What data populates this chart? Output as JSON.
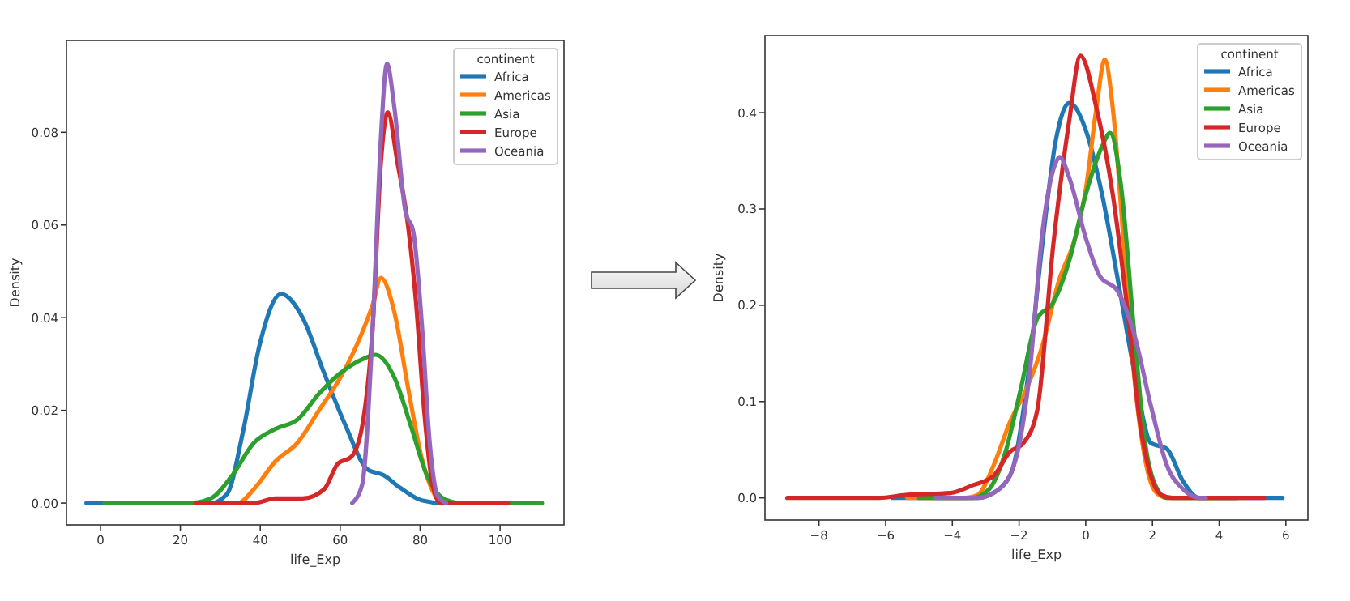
{
  "chart_data": [
    {
      "type": "line",
      "xlabel": "life_Exp",
      "ylabel": "Density",
      "legend": "top right",
      "legend_title": "continent",
      "xlim": [
        -8.5,
        116
      ],
      "ylim": [
        -0.0047,
        0.0998
      ],
      "xticks": [
        0,
        20,
        40,
        60,
        80,
        100
      ],
      "yticks": [
        {
          "value": 0,
          "label": "0.00"
        },
        {
          "value": 0.02,
          "label": "0.02"
        },
        {
          "value": 0.04,
          "label": "0.04"
        },
        {
          "value": 0.06,
          "label": "0.06"
        },
        {
          "value": 0.08,
          "label": "0.08"
        }
      ],
      "series": [
        {
          "name": "Africa",
          "color": "#1f77b4",
          "x": [
            -3.5,
            27.6,
            31.7,
            35.7,
            39.8,
            45.2,
            50.6,
            56,
            61.4,
            66.8,
            70.9,
            75,
            80.4,
            85.8,
            102
          ],
          "values": [
            0,
            0,
            0.002,
            0.0155,
            0.034,
            0.0451,
            0.04,
            0.028,
            0.0166,
            0.0073,
            0.006,
            0.0033,
            0.0006,
            0,
            0
          ]
        },
        {
          "name": "Americas",
          "color": "#ff7f0e",
          "x": [
            14,
            34.4,
            38.4,
            43.8,
            49.3,
            54.7,
            60,
            64.1,
            68.2,
            70.2,
            73.6,
            77,
            80.4,
            83.1,
            85.8,
            98
          ],
          "values": [
            0,
            0,
            0.003,
            0.009,
            0.013,
            0.02,
            0.027,
            0.034,
            0.043,
            0.0486,
            0.041,
            0.0248,
            0.0097,
            0.0027,
            0,
            0
          ]
        },
        {
          "name": "Asia",
          "color": "#2ca02c",
          "x": [
            1,
            22,
            27.6,
            33,
            38.4,
            43.8,
            49.3,
            54.7,
            60,
            65.5,
            68.9,
            73.6,
            77.7,
            81.7,
            85.8,
            89.9,
            110.5
          ],
          "values": [
            0,
            0,
            0.001,
            0.006,
            0.013,
            0.016,
            0.018,
            0.0236,
            0.028,
            0.031,
            0.032,
            0.027,
            0.0166,
            0.006,
            0.001,
            0,
            0
          ]
        },
        {
          "name": "Europe",
          "color": "#d62728",
          "x": [
            23.8,
            38.4,
            43.8,
            50.6,
            56,
            59.4,
            62.8,
            65.5,
            68.2,
            70.2,
            71.9,
            74.3,
            77,
            79,
            81,
            83.1,
            85.1,
            102
          ],
          "values": [
            0,
            0,
            0.001,
            0.001,
            0.003,
            0.0085,
            0.01,
            0.0166,
            0.039,
            0.0736,
            0.0843,
            0.0736,
            0.0597,
            0.043,
            0.02,
            0.004,
            0,
            0
          ]
        },
        {
          "name": "Oceania",
          "color": "#9467bd",
          "x": [
            63,
            65.5,
            68.2,
            70.2,
            71.7,
            73.6,
            76.3,
            78.3,
            80.4,
            82.4,
            84.4,
            86.5
          ],
          "values": [
            0,
            0.004,
            0.039,
            0.079,
            0.0948,
            0.085,
            0.063,
            0.0585,
            0.039,
            0.013,
            0.0015,
            0
          ]
        }
      ]
    },
    {
      "type": "line",
      "xlabel": "life_Exp",
      "ylabel": "Density",
      "legend": "top right",
      "legend_title": "continent",
      "xlim": [
        -9.62,
        6.66
      ],
      "ylim": [
        -0.023,
        0.48
      ],
      "xticks": [
        {
          "value": -8,
          "label": "−8"
        },
        {
          "value": -6,
          "label": "−6"
        },
        {
          "value": -4,
          "label": "−4"
        },
        {
          "value": -2,
          "label": "−2"
        },
        0,
        2,
        4,
        6
      ],
      "yticks": [
        {
          "value": 0,
          "label": "0.0"
        },
        0.1,
        0.2,
        0.3,
        0.4
      ],
      "series": [
        {
          "name": "Africa",
          "color": "#1f77b4",
          "x": [
            -5.8,
            -3.2,
            -2.9,
            -2.27,
            -1.78,
            -1.3,
            -0.9,
            -0.49,
            0,
            0.49,
            0.97,
            1.46,
            1.95,
            2.43,
            2.92,
            3.4,
            5.9
          ],
          "values": [
            0,
            0,
            0.003,
            0.023,
            0.113,
            0.264,
            0.371,
            0.41,
            0.382,
            0.315,
            0.225,
            0.13,
            0.057,
            0.051,
            0.017,
            0,
            0
          ]
        },
        {
          "name": "Americas",
          "color": "#ff7f0e",
          "x": [
            -5.35,
            -3.6,
            -3.24,
            -2.76,
            -2.27,
            -1.78,
            -1.3,
            -0.81,
            -0.32,
            0,
            0.32,
            0.57,
            0.81,
            1.14,
            1.46,
            1.78,
            2.1,
            2.43,
            4.5
          ],
          "values": [
            0,
            0,
            0.003,
            0.034,
            0.079,
            0.113,
            0.158,
            0.225,
            0.27,
            0.32,
            0.405,
            0.455,
            0.405,
            0.264,
            0.124,
            0.04,
            0.006,
            0,
            0
          ]
        },
        {
          "name": "Asia",
          "color": "#2ca02c",
          "x": [
            -5,
            -3.4,
            -2.9,
            -2.43,
            -1.95,
            -1.46,
            -0.97,
            -0.49,
            0,
            0.49,
            0.73,
            1.05,
            1.46,
            1.78,
            2.1,
            2.43,
            4.5
          ],
          "values": [
            0,
            0,
            0.009,
            0.045,
            0.113,
            0.186,
            0.203,
            0.247,
            0.315,
            0.365,
            0.379,
            0.326,
            0.169,
            0.057,
            0.012,
            0,
            0
          ]
        },
        {
          "name": "Europe",
          "color": "#d62728",
          "x": [
            -8.95,
            -6.2,
            -5.4,
            -4.06,
            -3.4,
            -2.76,
            -2.27,
            -1.87,
            -1.46,
            -0.97,
            -0.49,
            -0.16,
            0.32,
            0.81,
            1.3,
            1.62,
            1.95,
            2.27,
            2.6,
            5.35
          ],
          "values": [
            0,
            0,
            0.003,
            0.005,
            0.013,
            0.023,
            0.048,
            0.057,
            0.09,
            0.264,
            0.393,
            0.459,
            0.405,
            0.315,
            0.18,
            0.079,
            0.023,
            0.003,
            0,
            0
          ]
        },
        {
          "name": "Oceania",
          "color": "#9467bd",
          "x": [
            -4.5,
            -3.24,
            -2.6,
            -2.1,
            -1.7,
            -1.3,
            -0.9,
            -0.78,
            -0.49,
            0,
            0.41,
            0.97,
            1.46,
            1.95,
            2.43,
            2.92,
            3.4,
            3.6
          ],
          "values": [
            0,
            0,
            0.009,
            0.04,
            0.124,
            0.276,
            0.348,
            0.354,
            0.332,
            0.27,
            0.231,
            0.214,
            0.169,
            0.096,
            0.034,
            0.009,
            0,
            0
          ]
        }
      ]
    }
  ]
}
